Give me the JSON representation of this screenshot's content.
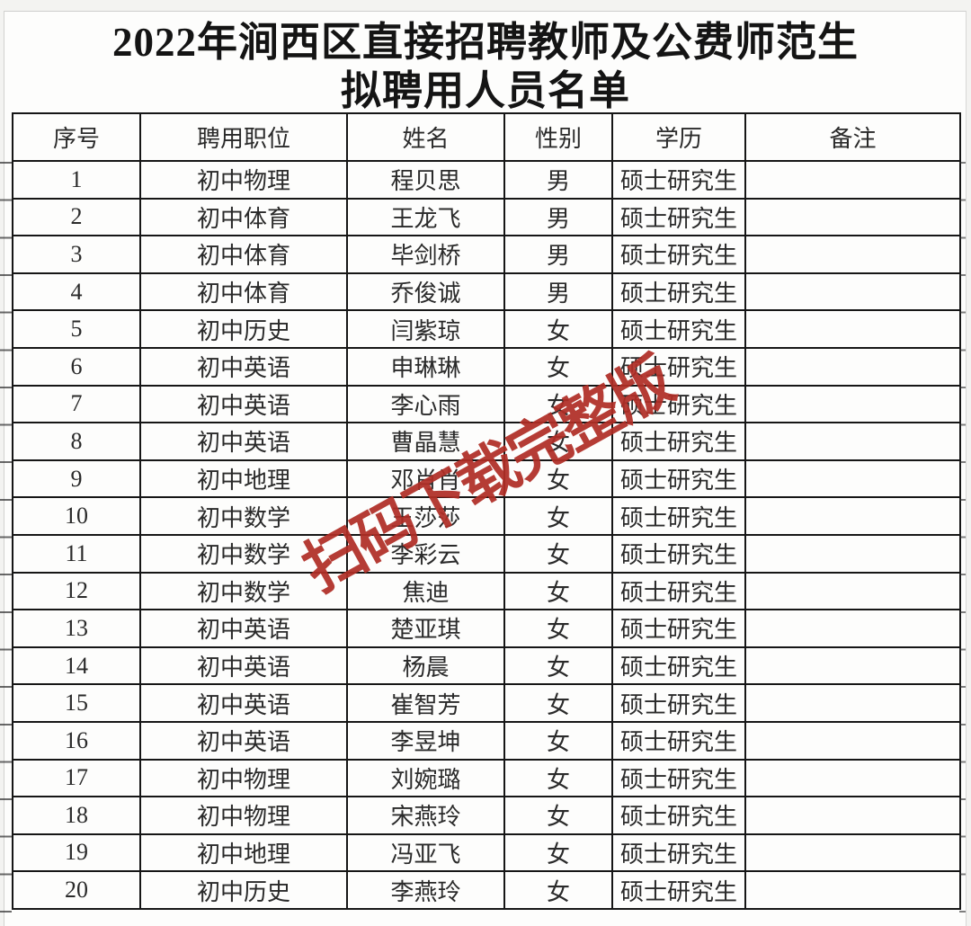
{
  "title": {
    "line1": "2022年涧西区直接招聘教师及公费师范生",
    "line2": "拟聘用人员名单"
  },
  "watermark": {
    "text": "扫码下载完整版",
    "color": "#b02e26"
  },
  "table": {
    "headers": [
      "序号",
      "聘用职位",
      "姓名",
      "性别",
      "学历",
      "备注"
    ],
    "rows": [
      {
        "no": "1",
        "position": "初中物理",
        "name": "程贝思",
        "gender": "男",
        "education": "硕士研究生",
        "note": ""
      },
      {
        "no": "2",
        "position": "初中体育",
        "name": "王龙飞",
        "gender": "男",
        "education": "硕士研究生",
        "note": ""
      },
      {
        "no": "3",
        "position": "初中体育",
        "name": "毕剑桥",
        "gender": "男",
        "education": "硕士研究生",
        "note": ""
      },
      {
        "no": "4",
        "position": "初中体育",
        "name": "乔俊诚",
        "gender": "男",
        "education": "硕士研究生",
        "note": ""
      },
      {
        "no": "5",
        "position": "初中历史",
        "name": "闫紫琼",
        "gender": "女",
        "education": "硕士研究生",
        "note": ""
      },
      {
        "no": "6",
        "position": "初中英语",
        "name": "申琳琳",
        "gender": "女",
        "education": "硕士研究生",
        "note": ""
      },
      {
        "no": "7",
        "position": "初中英语",
        "name": "李心雨",
        "gender": "女",
        "education": "硕士研究生",
        "note": ""
      },
      {
        "no": "8",
        "position": "初中英语",
        "name": "曹晶慧",
        "gender": "女",
        "education": "硕士研究生",
        "note": ""
      },
      {
        "no": "9",
        "position": "初中地理",
        "name": "邓肖肖",
        "gender": "女",
        "education": "硕士研究生",
        "note": ""
      },
      {
        "no": "10",
        "position": "初中数学",
        "name": "王莎莎",
        "gender": "女",
        "education": "硕士研究生",
        "note": ""
      },
      {
        "no": "11",
        "position": "初中数学",
        "name": "李彩云",
        "gender": "女",
        "education": "硕士研究生",
        "note": ""
      },
      {
        "no": "12",
        "position": "初中数学",
        "name": "焦迪",
        "gender": "女",
        "education": "硕士研究生",
        "note": ""
      },
      {
        "no": "13",
        "position": "初中英语",
        "name": "楚亚琪",
        "gender": "女",
        "education": "硕士研究生",
        "note": ""
      },
      {
        "no": "14",
        "position": "初中英语",
        "name": "杨晨",
        "gender": "女",
        "education": "硕士研究生",
        "note": ""
      },
      {
        "no": "15",
        "position": "初中英语",
        "name": "崔智芳",
        "gender": "女",
        "education": "硕士研究生",
        "note": ""
      },
      {
        "no": "16",
        "position": "初中英语",
        "name": "李昱坤",
        "gender": "女",
        "education": "硕士研究生",
        "note": ""
      },
      {
        "no": "17",
        "position": "初中物理",
        "name": "刘婉璐",
        "gender": "女",
        "education": "硕士研究生",
        "note": ""
      },
      {
        "no": "18",
        "position": "初中物理",
        "name": "宋燕玲",
        "gender": "女",
        "education": "硕士研究生",
        "note": ""
      },
      {
        "no": "19",
        "position": "初中地理",
        "name": "冯亚飞",
        "gender": "女",
        "education": "硕士研究生",
        "note": ""
      },
      {
        "no": "20",
        "position": "初中历史",
        "name": "李燕玲",
        "gender": "女",
        "education": "硕士研究生",
        "note": ""
      }
    ]
  }
}
